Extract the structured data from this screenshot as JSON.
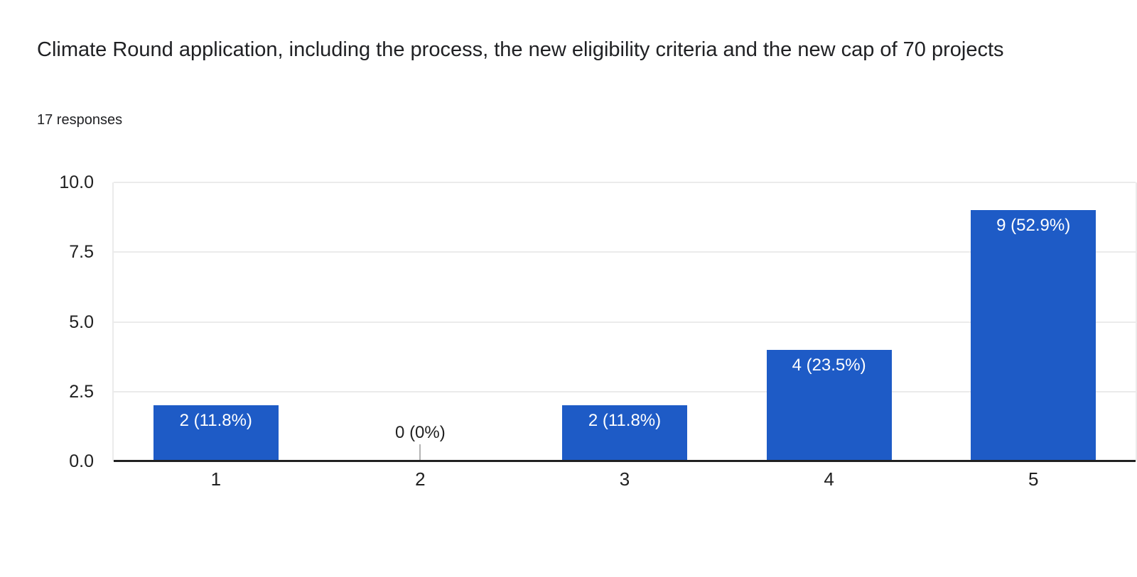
{
  "header": {
    "title": "Climate Round application, including the process, the new eligibility criteria and the new cap of 70 projects",
    "responses_label": "17 responses"
  },
  "chart_data": {
    "type": "bar",
    "title": "Climate Round application, including the process, the new eligibility criteria and the new cap of 70 projects",
    "subtitle": "17 responses",
    "categories": [
      "1",
      "2",
      "3",
      "4",
      "5"
    ],
    "values": [
      2,
      0,
      2,
      4,
      9
    ],
    "value_labels": [
      "2 (11.8%)",
      "0 (0%)",
      "2 (11.8%)",
      "4 (23.5%)",
      "9 (52.9%)"
    ],
    "percentages": [
      11.8,
      0,
      11.8,
      23.5,
      52.9
    ],
    "total_responses": 17,
    "xlabel": "",
    "ylabel": "",
    "ylim": [
      0,
      10
    ],
    "yticks": [
      "0.0",
      "2.5",
      "5.0",
      "7.5",
      "10.0"
    ],
    "grid": true,
    "legend": "none",
    "colors": {
      "bar": "#1E5BC6",
      "bar_label_text": "#FFFFFF",
      "zero_label_text": "#212121",
      "zero_stub": "#B3B3B3",
      "axis_line": "#212121",
      "gridline": "#EBEBEB",
      "tick_text": "#212121",
      "title_text": "#202124"
    }
  }
}
